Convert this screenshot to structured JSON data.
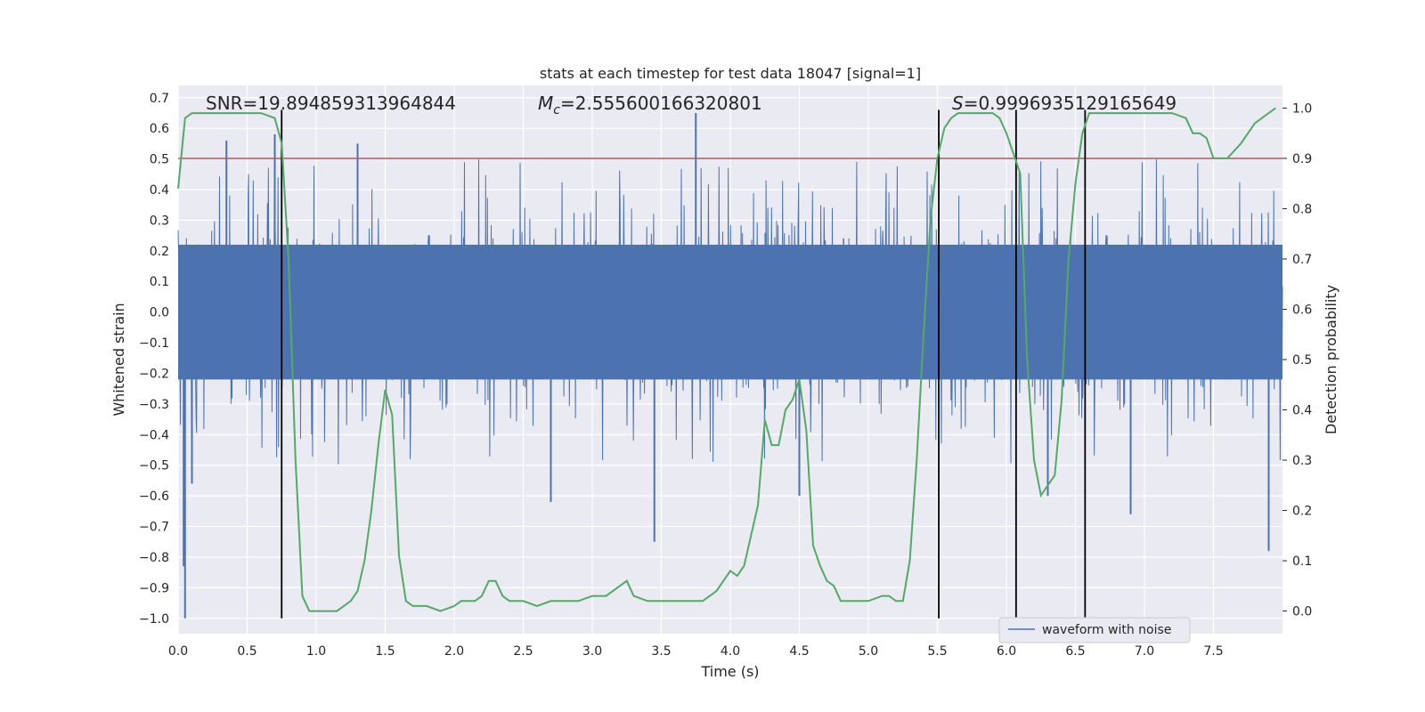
{
  "chart_data": {
    "type": "line",
    "title": "stats at each timestep for test data 18047 [signal=1]",
    "xlabel": "Time (s)",
    "ylabel": "Whitened strain",
    "y2label": "Detection probability",
    "xlim": [
      0.0,
      8.0
    ],
    "ylim": [
      -1.05,
      0.74
    ],
    "y2lim": [
      -0.045,
      1.045
    ],
    "xticks": [
      "0.0",
      "0.5",
      "1.0",
      "1.5",
      "2.0",
      "2.5",
      "3.0",
      "3.5",
      "4.0",
      "4.5",
      "5.0",
      "5.5",
      "6.0",
      "6.5",
      "7.0",
      "7.5"
    ],
    "yticks": [
      "0.7",
      "0.6",
      "0.5",
      "0.4",
      "0.3",
      "0.2",
      "0.1",
      "0.0",
      "−0.1",
      "−0.2",
      "−0.3",
      "−0.4",
      "−0.5",
      "−0.6",
      "−0.7",
      "−0.8",
      "−0.9",
      "−1.0"
    ],
    "y2ticks": [
      "1.0",
      "0.9",
      "0.8",
      "0.7",
      "0.6",
      "0.5",
      "0.4",
      "0.3",
      "0.2",
      "0.1",
      "0.0"
    ],
    "grid": true,
    "legend_position": "lower-right",
    "annotations": {
      "snr": "SNR=19.894859313964844",
      "mc_symbol": "M",
      "mc_sub": "c",
      "mc_value": "=2.555600166320801",
      "s_symbol": "S",
      "s_value": "=0.9996935129165649"
    },
    "series": [
      {
        "name": "waveform with noise",
        "color": "#4c72b0",
        "envelope": {
          "band": [
            -0.22,
            0.22
          ],
          "typical_spikes": [
            -0.45,
            0.45
          ],
          "x_range": [
            0.0,
            8.0
          ]
        },
        "notable_spikes": [
          {
            "x": 0.05,
            "y": -1.0
          },
          {
            "x": 0.04,
            "y": -0.83
          },
          {
            "x": 0.1,
            "y": -0.56
          },
          {
            "x": 0.35,
            "y": 0.56
          },
          {
            "x": 0.7,
            "y": 0.58
          },
          {
            "x": 1.3,
            "y": 0.55
          },
          {
            "x": 2.7,
            "y": -0.62
          },
          {
            "x": 3.45,
            "y": -0.75
          },
          {
            "x": 3.75,
            "y": 0.65
          },
          {
            "x": 4.5,
            "y": -0.6
          },
          {
            "x": 6.3,
            "y": -0.6
          },
          {
            "x": 6.9,
            "y": -0.66
          },
          {
            "x": 7.9,
            "y": -0.78
          }
        ]
      },
      {
        "name": "",
        "color": "#55a868",
        "axis": "right",
        "x": [
          0.0,
          0.05,
          0.1,
          0.2,
          0.3,
          0.4,
          0.5,
          0.6,
          0.7,
          0.75,
          0.8,
          0.85,
          0.9,
          0.95,
          1.0,
          1.05,
          1.1,
          1.15,
          1.2,
          1.25,
          1.3,
          1.35,
          1.4,
          1.45,
          1.5,
          1.55,
          1.6,
          1.65,
          1.7,
          1.8,
          1.9,
          2.0,
          2.05,
          2.1,
          2.15,
          2.2,
          2.25,
          2.3,
          2.35,
          2.4,
          2.5,
          2.6,
          2.7,
          2.8,
          2.9,
          3.0,
          3.1,
          3.2,
          3.25,
          3.3,
          3.4,
          3.5,
          3.6,
          3.7,
          3.8,
          3.9,
          4.0,
          4.05,
          4.1,
          4.2,
          4.25,
          4.3,
          4.35,
          4.4,
          4.45,
          4.5,
          4.55,
          4.6,
          4.65,
          4.7,
          4.75,
          4.8,
          4.9,
          5.0,
          5.1,
          5.15,
          5.2,
          5.25,
          5.3,
          5.35,
          5.4,
          5.45,
          5.5,
          5.55,
          5.6,
          5.65,
          5.7,
          5.8,
          5.9,
          5.95,
          6.0,
          6.05,
          6.1,
          6.15,
          6.2,
          6.25,
          6.3,
          6.35,
          6.4,
          6.45,
          6.5,
          6.55,
          6.6,
          6.65,
          6.7,
          6.8,
          6.9,
          7.0,
          7.1,
          7.15,
          7.2,
          7.3,
          7.35,
          7.4,
          7.45,
          7.5,
          7.55,
          7.6,
          7.7,
          7.8,
          7.9,
          7.95
        ],
        "y": [
          0.84,
          0.98,
          0.99,
          0.99,
          0.99,
          0.99,
          0.99,
          0.99,
          0.98,
          0.93,
          0.7,
          0.3,
          0.03,
          0.0,
          0.0,
          0.0,
          0.0,
          0.0,
          0.01,
          0.02,
          0.04,
          0.1,
          0.2,
          0.33,
          0.44,
          0.39,
          0.11,
          0.02,
          0.01,
          0.01,
          0.0,
          0.01,
          0.02,
          0.02,
          0.02,
          0.03,
          0.06,
          0.06,
          0.03,
          0.02,
          0.02,
          0.01,
          0.02,
          0.02,
          0.02,
          0.03,
          0.03,
          0.05,
          0.06,
          0.03,
          0.02,
          0.02,
          0.02,
          0.02,
          0.02,
          0.04,
          0.08,
          0.07,
          0.09,
          0.21,
          0.38,
          0.33,
          0.33,
          0.4,
          0.42,
          0.46,
          0.36,
          0.13,
          0.09,
          0.06,
          0.05,
          0.02,
          0.02,
          0.02,
          0.03,
          0.03,
          0.02,
          0.02,
          0.1,
          0.3,
          0.55,
          0.78,
          0.9,
          0.96,
          0.98,
          0.99,
          0.99,
          0.99,
          0.99,
          0.98,
          0.95,
          0.91,
          0.87,
          0.5,
          0.3,
          0.23,
          0.25,
          0.27,
          0.42,
          0.7,
          0.85,
          0.95,
          0.99,
          0.99,
          0.99,
          0.99,
          0.99,
          0.99,
          0.99,
          0.99,
          0.99,
          0.98,
          0.95,
          0.95,
          0.94,
          0.9,
          0.9,
          0.9,
          0.93,
          0.97,
          0.99,
          1.0
        ]
      },
      {
        "name": "",
        "color": "#c44e52",
        "type": "hline",
        "axis": "right",
        "y": 0.9
      },
      {
        "name": "",
        "color": "#000000",
        "type": "vlines",
        "x": [
          0.75,
          5.51,
          6.07,
          6.57
        ],
        "y_from": -1.0,
        "y_to": 0.66
      }
    ]
  }
}
